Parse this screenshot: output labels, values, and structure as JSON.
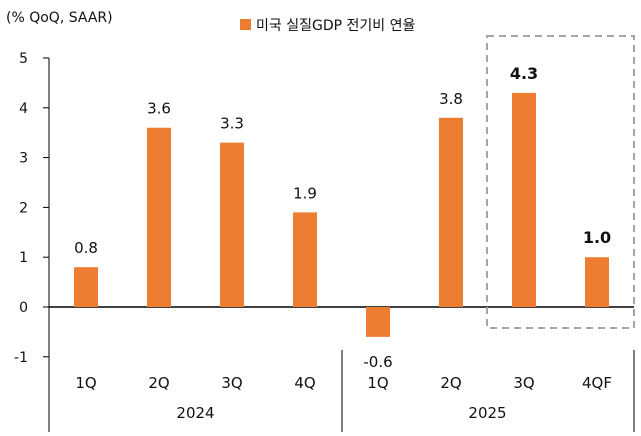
{
  "chart_data": {
    "type": "bar",
    "title": "",
    "unit_label": "(% QoQ, SAAR)",
    "legend": "미국 실질GDP 전기비 연율",
    "categories": [
      "1Q",
      "2Q",
      "3Q",
      "4Q",
      "1Q",
      "2Q",
      "3Q",
      "4QF"
    ],
    "groups": [
      {
        "label": "2024",
        "categories": [
          "1Q",
          "2Q",
          "3Q",
          "4Q"
        ]
      },
      {
        "label": "2025",
        "categories": [
          "1Q",
          "2Q",
          "3Q",
          "4QF"
        ]
      }
    ],
    "values": [
      0.8,
      3.6,
      3.3,
      1.9,
      -0.6,
      3.8,
      4.3,
      1.0
    ],
    "data_labels": [
      "0.8",
      "3.6",
      "3.3",
      "1.9",
      "-0.6",
      "3.8",
      "4.3",
      "1.0"
    ],
    "highlighted_categories": [
      "3Q",
      "4QF"
    ],
    "y_ticks": [
      "5",
      "4",
      "3",
      "2",
      "1",
      "0",
      "-1"
    ],
    "ylim": [
      -1,
      5
    ],
    "xlabel": "",
    "ylabel": "",
    "bar_color": "#ED7D31",
    "highlight_box_color": "#A6A6A6"
  }
}
